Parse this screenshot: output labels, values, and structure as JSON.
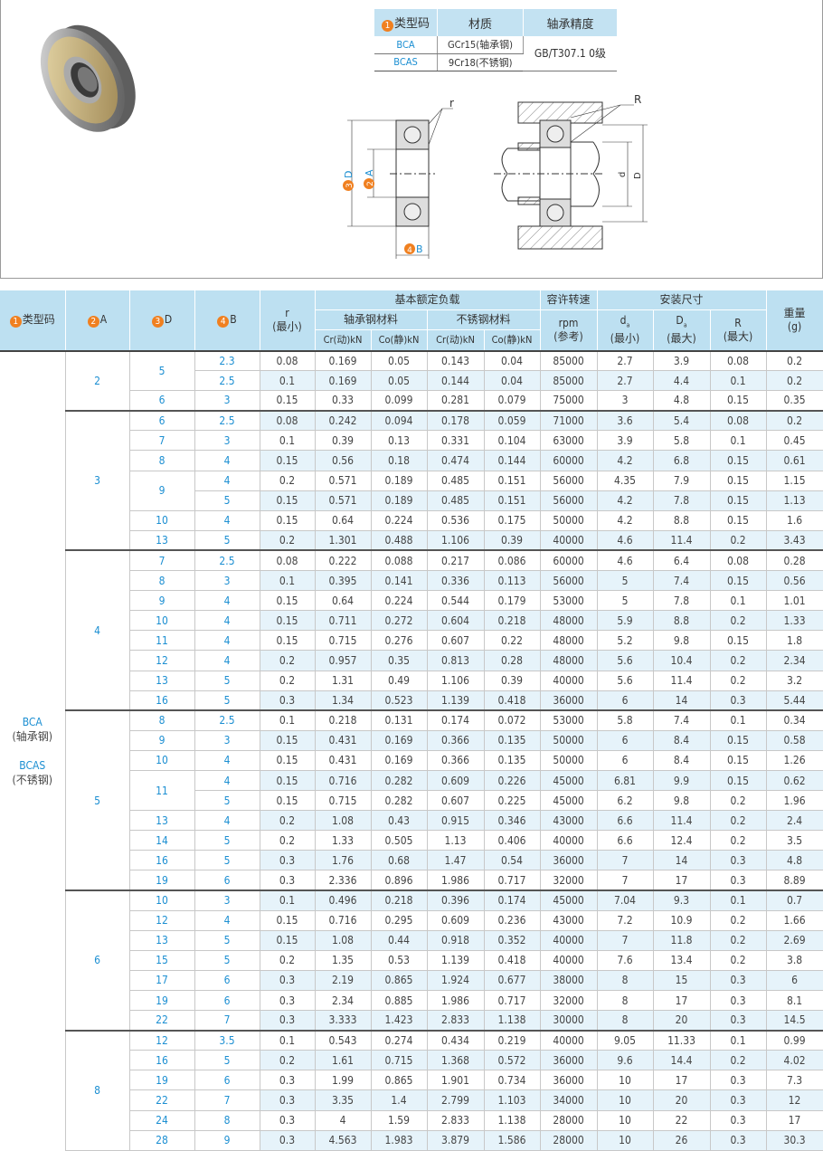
{
  "spec_table": {
    "headers": {
      "num": "1",
      "type": "类型码",
      "material": "材质",
      "precision": "轴承精度"
    },
    "rows": [
      {
        "type": "BCA",
        "material": "GCr15(轴承钢)"
      },
      {
        "type": "BCAS",
        "material": "9Cr18(不锈钢)"
      }
    ],
    "precision": "GB/T307.1 0级"
  },
  "diagram": {
    "r": "r",
    "R": "R",
    "D_num": "3",
    "D": "D",
    "A_num": "2",
    "A": "A",
    "B_num": "4",
    "B": "B",
    "da": "d",
    "da_sub": "a",
    "Da": "D",
    "Da_sub": "a"
  },
  "colors": {
    "header_bg": "#bde0f1",
    "stripe": "#e6f3fa",
    "accent_blue": "#1c8fd2",
    "badge_orange": "#f08020"
  },
  "table": {
    "headers": {
      "type_num": "1",
      "type": "类型码",
      "A_num": "2",
      "A": "A",
      "D_num": "3",
      "D": "D",
      "B_num": "4",
      "B": "B",
      "r": "r",
      "r_sub": "(最小)",
      "load": "基本额定负载",
      "bearing_steel": "轴承钢材料",
      "stainless": "不锈钢材料",
      "cr1": "Cr(动)kN",
      "co1": "Co(静)kN",
      "cr2": "Cr(动)kN",
      "co2": "Co(静)kN",
      "speed": "容许转速",
      "speed_unit": "rpm",
      "speed_note": "(参考)",
      "install": "安装尺寸",
      "da": "d",
      "da_sub": "a",
      "da_note": "(最小)",
      "Da": "D",
      "Da_sub": "a",
      "Da_note": "(最大)",
      "R": "R",
      "R_note": "(最大)",
      "weight": "重量",
      "weight_unit": "(g)"
    },
    "type_code": {
      "bca": "BCA",
      "bca_note": "(轴承钢)",
      "bcas": "BCAS",
      "bcas_note": "(不锈钢)"
    },
    "groups": [
      {
        "A": "2",
        "d_groups": [
          {
            "D": "5",
            "rows": [
              [
                "2.3",
                "0.08",
                "0.169",
                "0.05",
                "0.143",
                "0.04",
                "85000",
                "2.7",
                "3.9",
                "0.08",
                "0.2"
              ],
              [
                "2.5",
                "0.1",
                "0.169",
                "0.05",
                "0.144",
                "0.04",
                "85000",
                "2.7",
                "4.4",
                "0.1",
                "0.2"
              ]
            ]
          },
          {
            "D": "6",
            "rows": [
              [
                "3",
                "0.15",
                "0.33",
                "0.099",
                "0.281",
                "0.079",
                "75000",
                "3",
                "4.8",
                "0.15",
                "0.35"
              ]
            ]
          }
        ]
      },
      {
        "A": "3",
        "d_groups": [
          {
            "D": "6",
            "rows": [
              [
                "2.5",
                "0.08",
                "0.242",
                "0.094",
                "0.178",
                "0.059",
                "71000",
                "3.6",
                "5.4",
                "0.08",
                "0.2"
              ]
            ]
          },
          {
            "D": "7",
            "rows": [
              [
                "3",
                "0.1",
                "0.39",
                "0.13",
                "0.331",
                "0.104",
                "63000",
                "3.9",
                "5.8",
                "0.1",
                "0.45"
              ]
            ]
          },
          {
            "D": "8",
            "rows": [
              [
                "4",
                "0.15",
                "0.56",
                "0.18",
                "0.474",
                "0.144",
                "60000",
                "4.2",
                "6.8",
                "0.15",
                "0.61"
              ]
            ]
          },
          {
            "D": "9",
            "rows": [
              [
                "4",
                "0.2",
                "0.571",
                "0.189",
                "0.485",
                "0.151",
                "56000",
                "4.35",
                "7.9",
                "0.15",
                "1.15"
              ],
              [
                "5",
                "0.15",
                "0.571",
                "0.189",
                "0.485",
                "0.151",
                "56000",
                "4.2",
                "7.8",
                "0.15",
                "1.13"
              ]
            ]
          },
          {
            "D": "10",
            "rows": [
              [
                "4",
                "0.15",
                "0.64",
                "0.224",
                "0.536",
                "0.175",
                "50000",
                "4.2",
                "8.8",
                "0.15",
                "1.6"
              ]
            ]
          },
          {
            "D": "13",
            "rows": [
              [
                "5",
                "0.2",
                "1.301",
                "0.488",
                "1.106",
                "0.39",
                "40000",
                "4.6",
                "11.4",
                "0.2",
                "3.43"
              ]
            ]
          }
        ]
      },
      {
        "A": "4",
        "d_groups": [
          {
            "D": "7",
            "rows": [
              [
                "2.5",
                "0.08",
                "0.222",
                "0.088",
                "0.217",
                "0.086",
                "60000",
                "4.6",
                "6.4",
                "0.08",
                "0.28"
              ]
            ]
          },
          {
            "D": "8",
            "rows": [
              [
                "3",
                "0.1",
                "0.395",
                "0.141",
                "0.336",
                "0.113",
                "56000",
                "5",
                "7.4",
                "0.15",
                "0.56"
              ]
            ]
          },
          {
            "D": "9",
            "rows": [
              [
                "4",
                "0.15",
                "0.64",
                "0.224",
                "0.544",
                "0.179",
                "53000",
                "5",
                "7.8",
                "0.1",
                "1.01"
              ]
            ]
          },
          {
            "D": "10",
            "rows": [
              [
                "4",
                "0.15",
                "0.711",
                "0.272",
                "0.604",
                "0.218",
                "48000",
                "5.9",
                "8.8",
                "0.2",
                "1.33"
              ]
            ]
          },
          {
            "D": "11",
            "rows": [
              [
                "4",
                "0.15",
                "0.715",
                "0.276",
                "0.607",
                "0.22",
                "48000",
                "5.2",
                "9.8",
                "0.15",
                "1.8"
              ]
            ]
          },
          {
            "D": "12",
            "rows": [
              [
                "4",
                "0.2",
                "0.957",
                "0.35",
                "0.813",
                "0.28",
                "48000",
                "5.6",
                "10.4",
                "0.2",
                "2.34"
              ]
            ]
          },
          {
            "D": "13",
            "rows": [
              [
                "5",
                "0.2",
                "1.31",
                "0.49",
                "1.106",
                "0.39",
                "40000",
                "5.6",
                "11.4",
                "0.2",
                "3.2"
              ]
            ]
          },
          {
            "D": "16",
            "rows": [
              [
                "5",
                "0.3",
                "1.34",
                "0.523",
                "1.139",
                "0.418",
                "36000",
                "6",
                "14",
                "0.3",
                "5.44"
              ]
            ]
          }
        ]
      },
      {
        "A": "5",
        "d_groups": [
          {
            "D": "8",
            "rows": [
              [
                "2.5",
                "0.1",
                "0.218",
                "0.131",
                "0.174",
                "0.072",
                "53000",
                "5.8",
                "7.4",
                "0.1",
                "0.34"
              ]
            ]
          },
          {
            "D": "9",
            "rows": [
              [
                "3",
                "0.15",
                "0.431",
                "0.169",
                "0.366",
                "0.135",
                "50000",
                "6",
                "8.4",
                "0.15",
                "0.58"
              ]
            ]
          },
          {
            "D": "10",
            "rows": [
              [
                "4",
                "0.15",
                "0.431",
                "0.169",
                "0.366",
                "0.135",
                "50000",
                "6",
                "8.4",
                "0.15",
                "1.26"
              ]
            ]
          },
          {
            "D": "11",
            "rows": [
              [
                "4",
                "0.15",
                "0.716",
                "0.282",
                "0.609",
                "0.226",
                "45000",
                "6.81",
                "9.9",
                "0.15",
                "0.62"
              ],
              [
                "5",
                "0.15",
                "0.715",
                "0.282",
                "0.607",
                "0.225",
                "45000",
                "6.2",
                "9.8",
                "0.2",
                "1.96"
              ]
            ]
          },
          {
            "D": "13",
            "rows": [
              [
                "4",
                "0.2",
                "1.08",
                "0.43",
                "0.915",
                "0.346",
                "43000",
                "6.6",
                "11.4",
                "0.2",
                "2.4"
              ]
            ]
          },
          {
            "D": "14",
            "rows": [
              [
                "5",
                "0.2",
                "1.33",
                "0.505",
                "1.13",
                "0.406",
                "40000",
                "6.6",
                "12.4",
                "0.2",
                "3.5"
              ]
            ]
          },
          {
            "D": "16",
            "rows": [
              [
                "5",
                "0.3",
                "1.76",
                "0.68",
                "1.47",
                "0.54",
                "36000",
                "7",
                "14",
                "0.3",
                "4.8"
              ]
            ]
          },
          {
            "D": "19",
            "rows": [
              [
                "6",
                "0.3",
                "2.336",
                "0.896",
                "1.986",
                "0.717",
                "32000",
                "7",
                "17",
                "0.3",
                "8.89"
              ]
            ]
          }
        ]
      },
      {
        "A": "6",
        "d_groups": [
          {
            "D": "10",
            "rows": [
              [
                "3",
                "0.1",
                "0.496",
                "0.218",
                "0.396",
                "0.174",
                "45000",
                "7.04",
                "9.3",
                "0.1",
                "0.7"
              ]
            ]
          },
          {
            "D": "12",
            "rows": [
              [
                "4",
                "0.15",
                "0.716",
                "0.295",
                "0.609",
                "0.236",
                "43000",
                "7.2",
                "10.9",
                "0.2",
                "1.66"
              ]
            ]
          },
          {
            "D": "13",
            "rows": [
              [
                "5",
                "0.15",
                "1.08",
                "0.44",
                "0.918",
                "0.352",
                "40000",
                "7",
                "11.8",
                "0.2",
                "2.69"
              ]
            ]
          },
          {
            "D": "15",
            "rows": [
              [
                "5",
                "0.2",
                "1.35",
                "0.53",
                "1.139",
                "0.418",
                "40000",
                "7.6",
                "13.4",
                "0.2",
                "3.8"
              ]
            ]
          },
          {
            "D": "17",
            "rows": [
              [
                "6",
                "0.3",
                "2.19",
                "0.865",
                "1.924",
                "0.677",
                "38000",
                "8",
                "15",
                "0.3",
                "6"
              ]
            ]
          },
          {
            "D": "19",
            "rows": [
              [
                "6",
                "0.3",
                "2.34",
                "0.885",
                "1.986",
                "0.717",
                "32000",
                "8",
                "17",
                "0.3",
                "8.1"
              ]
            ]
          },
          {
            "D": "22",
            "rows": [
              [
                "7",
                "0.3",
                "3.333",
                "1.423",
                "2.833",
                "1.138",
                "30000",
                "8",
                "20",
                "0.3",
                "14.5"
              ]
            ]
          }
        ]
      },
      {
        "A": "8",
        "d_groups": [
          {
            "D": "12",
            "rows": [
              [
                "3.5",
                "0.1",
                "0.543",
                "0.274",
                "0.434",
                "0.219",
                "40000",
                "9.05",
                "11.33",
                "0.1",
                "0.99"
              ]
            ]
          },
          {
            "D": "16",
            "rows": [
              [
                "5",
                "0.2",
                "1.61",
                "0.715",
                "1.368",
                "0.572",
                "36000",
                "9.6",
                "14.4",
                "0.2",
                "4.02"
              ]
            ]
          },
          {
            "D": "19",
            "rows": [
              [
                "6",
                "0.3",
                "1.99",
                "0.865",
                "1.901",
                "0.734",
                "36000",
                "10",
                "17",
                "0.3",
                "7.3"
              ]
            ]
          },
          {
            "D": "22",
            "rows": [
              [
                "7",
                "0.3",
                "3.35",
                "1.4",
                "2.799",
                "1.103",
                "34000",
                "10",
                "20",
                "0.3",
                "12"
              ]
            ]
          },
          {
            "D": "24",
            "rows": [
              [
                "8",
                "0.3",
                "4",
                "1.59",
                "2.833",
                "1.138",
                "28000",
                "10",
                "22",
                "0.3",
                "17"
              ]
            ]
          },
          {
            "D": "28",
            "rows": [
              [
                "9",
                "0.3",
                "4.563",
                "1.983",
                "3.879",
                "1.586",
                "28000",
                "10",
                "26",
                "0.3",
                "30.3"
              ]
            ]
          }
        ]
      }
    ]
  }
}
